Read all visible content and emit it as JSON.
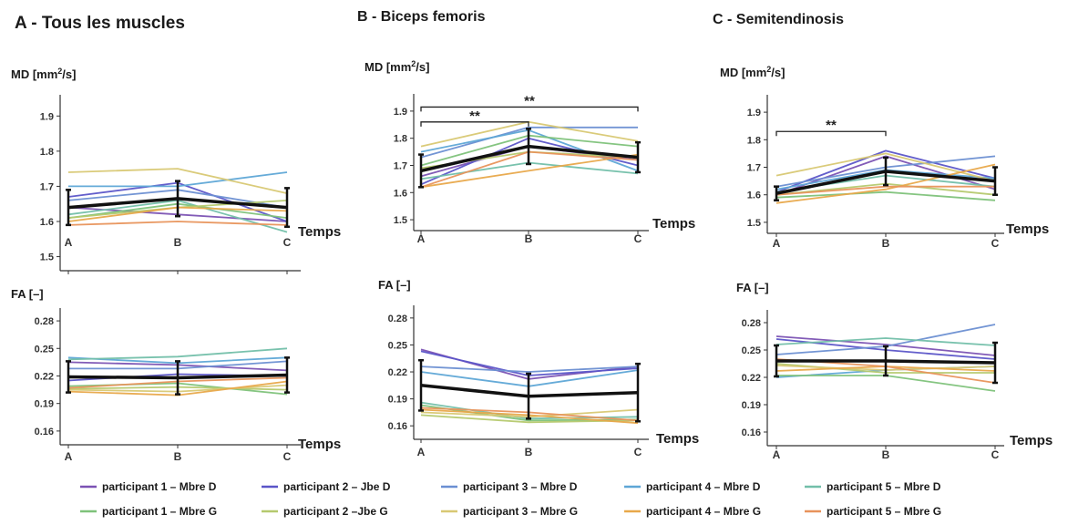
{
  "legend": [
    {
      "label": "participant 1 – Mbre D",
      "color": "#7b52b3"
    },
    {
      "label": "participant 2 – Jbe D",
      "color": "#5b55c8"
    },
    {
      "label": "participant 3 –  Mbre D",
      "color": "#6b8fd2"
    },
    {
      "label": "participant 4 – Mbre D",
      "color": "#5ea6d6"
    },
    {
      "label": "participant 5 – Mbre D",
      "color": "#72bfa9"
    },
    {
      "label": "participant 1 – Mbre G",
      "color": "#7ec27a"
    },
    {
      "label": "participant 2 –Jbe G",
      "color": "#b5c96e"
    },
    {
      "label": "participant 3 – Mbre G",
      "color": "#d8c873"
    },
    {
      "label": "participant 4 – Mbre G",
      "color": "#e8a84a"
    },
    {
      "label": "participant 5 –  Mbre G",
      "color": "#e8935b"
    }
  ],
  "chart_data": [
    {
      "type": "line",
      "title": "A - Tous les muscles",
      "ylabel": "MD [mm²/s]",
      "xlabel": "Temps",
      "categories": [
        "A",
        "B",
        "C"
      ],
      "yticks": [
        "1.5",
        "1.6",
        "1.7",
        "1.8",
        "1.9"
      ],
      "ylim": [
        1.46,
        1.95
      ],
      "series": [
        {
          "values": [
            1.64,
            1.62,
            1.6
          ],
          "color": "#7b52b3"
        },
        {
          "values": [
            1.67,
            1.71,
            1.6
          ],
          "color": "#5b55c8"
        },
        {
          "values": [
            1.66,
            1.69,
            1.64
          ],
          "color": "#6b8fd2"
        },
        {
          "values": [
            1.7,
            1.7,
            1.74
          ],
          "color": "#5ea6d6"
        },
        {
          "values": [
            1.62,
            1.66,
            1.57
          ],
          "color": "#72bfa9"
        },
        {
          "values": [
            1.61,
            1.65,
            1.61
          ],
          "color": "#7ec27a"
        },
        {
          "values": [
            1.61,
            1.64,
            1.66
          ],
          "color": "#b5c96e"
        },
        {
          "values": [
            1.74,
            1.75,
            1.68
          ],
          "color": "#d8c873"
        },
        {
          "values": [
            1.6,
            1.64,
            1.63
          ],
          "color": "#e8a84a"
        },
        {
          "values": [
            1.59,
            1.6,
            1.59
          ],
          "color": "#e8935b"
        }
      ],
      "mean": {
        "values": [
          1.64,
          1.665,
          1.64
        ],
        "err": [
          0.05,
          0.05,
          0.055
        ]
      },
      "significance": []
    },
    {
      "type": "line",
      "title": "B - Biceps femoris",
      "ylabel": "MD [mm²/s]",
      "xlabel": "Temps",
      "categories": [
        "A",
        "B",
        "C"
      ],
      "yticks": [
        "1.5",
        "1.6",
        "1.7",
        "1.8",
        "1.9"
      ],
      "ylim": [
        1.46,
        1.95
      ],
      "series": [
        {
          "values": [
            1.66,
            1.77,
            1.72
          ],
          "color": "#7b52b3"
        },
        {
          "values": [
            1.63,
            1.8,
            1.7
          ],
          "color": "#5b55c8"
        },
        {
          "values": [
            1.73,
            1.84,
            1.84
          ],
          "color": "#6b8fd2"
        },
        {
          "values": [
            1.75,
            1.83,
            1.68
          ],
          "color": "#5ea6d6"
        },
        {
          "values": [
            1.65,
            1.71,
            1.67
          ],
          "color": "#72bfa9"
        },
        {
          "values": [
            1.7,
            1.81,
            1.77
          ],
          "color": "#7ec27a"
        },
        {
          "values": [
            1.69,
            1.75,
            1.73
          ],
          "color": "#b5c96e"
        },
        {
          "values": [
            1.77,
            1.86,
            1.79
          ],
          "color": "#d8c873"
        },
        {
          "values": [
            1.62,
            1.68,
            1.74
          ],
          "color": "#e8a84a"
        },
        {
          "values": [
            1.62,
            1.75,
            1.72
          ],
          "color": "#e8935b"
        }
      ],
      "mean": {
        "values": [
          1.68,
          1.77,
          1.73
        ],
        "err": [
          0.06,
          0.065,
          0.055
        ]
      },
      "significance": [
        {
          "label": "**",
          "from": 0,
          "to": 1,
          "y": 1.86
        },
        {
          "label": "**",
          "from": 0,
          "to": 2,
          "y": 1.915
        }
      ]
    },
    {
      "type": "line",
      "title": "C - Semitendinosis",
      "ylabel": "MD [mm²/s]",
      "xlabel": "Temps",
      "categories": [
        "A",
        "B",
        "C"
      ],
      "yticks": [
        "1.5",
        "1.6",
        "1.7",
        "1.8",
        "1.9"
      ],
      "ylim": [
        1.46,
        1.95
      ],
      "series": [
        {
          "values": [
            1.6,
            1.74,
            1.62
          ],
          "color": "#7b52b3"
        },
        {
          "values": [
            1.61,
            1.76,
            1.66
          ],
          "color": "#5b55c8"
        },
        {
          "values": [
            1.63,
            1.7,
            1.74
          ],
          "color": "#6b8fd2"
        },
        {
          "values": [
            1.62,
            1.69,
            1.66
          ],
          "color": "#5ea6d6"
        },
        {
          "values": [
            1.61,
            1.67,
            1.63
          ],
          "color": "#72bfa9"
        },
        {
          "values": [
            1.59,
            1.61,
            1.58
          ],
          "color": "#7ec27a"
        },
        {
          "values": [
            1.6,
            1.64,
            1.6
          ],
          "color": "#b5c96e"
        },
        {
          "values": [
            1.67,
            1.75,
            1.65
          ],
          "color": "#d8c873"
        },
        {
          "values": [
            1.57,
            1.62,
            1.71
          ],
          "color": "#e8a84a"
        },
        {
          "values": [
            1.6,
            1.63,
            1.63
          ],
          "color": "#e8935b"
        }
      ],
      "mean": {
        "values": [
          1.605,
          1.685,
          1.65
        ],
        "err": [
          0.025,
          0.05,
          0.05
        ]
      },
      "significance": [
        {
          "label": "**",
          "from": 0,
          "to": 1,
          "y": 1.83
        }
      ]
    },
    {
      "type": "line",
      "title": "",
      "ylabel": "FA [–]",
      "xlabel": "Temps",
      "categories": [
        "A",
        "B",
        "C"
      ],
      "yticks": [
        "0.16",
        "0.19",
        "0.22",
        "0.25",
        "0.28"
      ],
      "ylim": [
        0.145,
        0.29
      ],
      "series": [
        {
          "values": [
            0.235,
            0.232,
            0.226
          ],
          "color": "#7b52b3"
        },
        {
          "values": [
            0.215,
            0.222,
            0.22
          ],
          "color": "#5b55c8"
        },
        {
          "values": [
            0.228,
            0.228,
            0.236
          ],
          "color": "#6b8fd2"
        },
        {
          "values": [
            0.24,
            0.234,
            0.24
          ],
          "color": "#5ea6d6"
        },
        {
          "values": [
            0.238,
            0.241,
            0.25
          ],
          "color": "#72bfa9"
        },
        {
          "values": [
            0.209,
            0.212,
            0.2
          ],
          "color": "#7ec27a"
        },
        {
          "values": [
            0.206,
            0.208,
            0.205
          ],
          "color": "#b5c96e"
        },
        {
          "values": [
            0.205,
            0.203,
            0.21
          ],
          "color": "#d8c873"
        },
        {
          "values": [
            0.203,
            0.199,
            0.214
          ],
          "color": "#e8a84a"
        },
        {
          "values": [
            0.207,
            0.214,
            0.218
          ],
          "color": "#e8935b"
        }
      ],
      "mean": {
        "values": [
          0.219,
          0.218,
          0.221
        ],
        "err": [
          0.017,
          0.018,
          0.019
        ]
      },
      "significance": []
    },
    {
      "type": "line",
      "title": "",
      "ylabel": "FA [–]",
      "xlabel": "Temps",
      "categories": [
        "A",
        "B",
        "C"
      ],
      "yticks": [
        "0.16",
        "0.19",
        "0.22",
        "0.25",
        "0.28"
      ],
      "ylim": [
        0.145,
        0.29
      ],
      "series": [
        {
          "values": [
            0.245,
            0.212,
            0.226
          ],
          "color": "#7b52b3"
        },
        {
          "values": [
            0.243,
            0.216,
            0.224
          ],
          "color": "#5b55c8"
        },
        {
          "values": [
            0.226,
            0.22,
            0.226
          ],
          "color": "#6b8fd2"
        },
        {
          "values": [
            0.22,
            0.204,
            0.222
          ],
          "color": "#5ea6d6"
        },
        {
          "values": [
            0.186,
            0.168,
            0.17
          ],
          "color": "#72bfa9"
        },
        {
          "values": [
            0.183,
            0.166,
            0.167
          ],
          "color": "#7ec27a"
        },
        {
          "values": [
            0.172,
            0.164,
            0.166
          ],
          "color": "#b5c96e"
        },
        {
          "values": [
            0.175,
            0.17,
            0.178
          ],
          "color": "#d8c873"
        },
        {
          "values": [
            0.178,
            0.172,
            0.163
          ],
          "color": "#e8a84a"
        },
        {
          "values": [
            0.18,
            0.175,
            0.166
          ],
          "color": "#e8935b"
        }
      ],
      "mean": {
        "values": [
          0.205,
          0.193,
          0.197
        ],
        "err": [
          0.028,
          0.025,
          0.032
        ]
      },
      "significance": []
    },
    {
      "type": "line",
      "title": "",
      "ylabel": "FA [–]",
      "xlabel": "Temps",
      "categories": [
        "A",
        "B",
        "C"
      ],
      "yticks": [
        "0.16",
        "0.19",
        "0.22",
        "0.25",
        "0.28"
      ],
      "ylim": [
        0.145,
        0.29
      ],
      "series": [
        {
          "values": [
            0.265,
            0.256,
            0.244
          ],
          "color": "#7b52b3"
        },
        {
          "values": [
            0.262,
            0.25,
            0.24
          ],
          "color": "#5b55c8"
        },
        {
          "values": [
            0.245,
            0.254,
            0.278
          ],
          "color": "#6b8fd2"
        },
        {
          "values": [
            0.22,
            0.228,
            0.232
          ],
          "color": "#5ea6d6"
        },
        {
          "values": [
            0.256,
            0.263,
            0.255
          ],
          "color": "#72bfa9"
        },
        {
          "values": [
            0.222,
            0.222,
            0.205
          ],
          "color": "#7ec27a"
        },
        {
          "values": [
            0.235,
            0.225,
            0.225
          ],
          "color": "#b5c96e"
        },
        {
          "values": [
            0.233,
            0.228,
            0.232
          ],
          "color": "#d8c873"
        },
        {
          "values": [
            0.227,
            0.232,
            0.227
          ],
          "color": "#e8a84a"
        },
        {
          "values": [
            0.24,
            0.232,
            0.214
          ],
          "color": "#e8935b"
        }
      ],
      "mean": {
        "values": [
          0.238,
          0.238,
          0.236
        ],
        "err": [
          0.017,
          0.016,
          0.022
        ]
      },
      "significance": []
    }
  ]
}
